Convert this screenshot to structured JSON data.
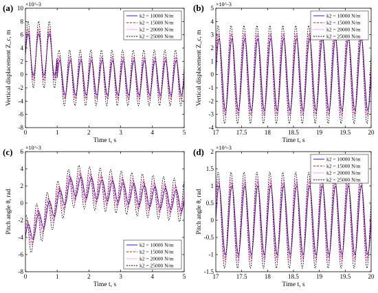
{
  "legend_suffix": "N/m",
  "series_styles": [
    {
      "color": "#0000ff",
      "dash": "none"
    },
    {
      "color": "#ff0000",
      "dash": "3,2"
    },
    {
      "color": "#ff00ff",
      "dash": "none",
      "alpha": 0.45
    },
    {
      "color": "#000000",
      "dash": "2,1.5"
    }
  ],
  "chart_data": [
    {
      "panel": "(a)",
      "type": "line",
      "xlabel": "Time t, s",
      "ylabel": "Vertical displacement Z_c, m",
      "y_exponent": "×10^-3",
      "xlim": [
        0,
        5
      ],
      "ylim": [
        -8,
        10
      ],
      "xticks": [
        0,
        1,
        2,
        3,
        4,
        5
      ],
      "yticks": [
        -8,
        -6,
        -4,
        -2,
        0,
        2,
        4,
        6,
        8,
        10
      ],
      "legend_position": "top-right",
      "signal": {
        "freq": 3.0,
        "transient_until": 1.0,
        "mean": -0.5
      },
      "series": [
        {
          "name": "k2 = 10000 N/m",
          "amplitude": 2.6
        },
        {
          "name": "k2 = 15000 N/m",
          "amplitude": 3.2
        },
        {
          "name": "k2 = 20000 N/m",
          "amplitude": 3.0
        },
        {
          "name": "k2 = 25000 N/m",
          "amplitude": 4.2
        }
      ]
    },
    {
      "panel": "(b)",
      "type": "line",
      "xlabel": "Time t, s",
      "ylabel": "Vertical displacement Z_c, m",
      "y_exponent": "×10^-3",
      "xlim": [
        17,
        20
      ],
      "ylim": [
        -4,
        5
      ],
      "xticks": [
        17,
        17.5,
        18,
        18.5,
        19,
        19.5,
        20
      ],
      "yticks": [
        -4,
        -3,
        -2,
        -1,
        0,
        1,
        2,
        3,
        4,
        5
      ],
      "legend_position": "top-right",
      "signal": {
        "freq": 4.0,
        "transient_until": 0,
        "mean": 0
      },
      "series": [
        {
          "name": "k2 = 10000 N/m",
          "amplitude": 2.7
        },
        {
          "name": "k2 = 15000 N/m",
          "amplitude": 3.0
        },
        {
          "name": "k2 = 20000 N/m",
          "amplitude": 3.1
        },
        {
          "name": "k2 = 25000 N/m",
          "amplitude": 3.7
        }
      ]
    },
    {
      "panel": "(c)",
      "type": "line",
      "xlabel": "Time t, s",
      "ylabel": "Pitch angle θ, rad",
      "y_exponent": "×10^-3",
      "xlim": [
        0,
        5
      ],
      "ylim": [
        -8,
        6
      ],
      "xticks": [
        0,
        1,
        2,
        3,
        4,
        5
      ],
      "yticks": [
        -8,
        -6,
        -4,
        -2,
        0,
        2,
        4,
        6
      ],
      "legend_position": "bottom-right",
      "signal": {
        "freq": 3.0,
        "transient_until": 0,
        "mean": 0
      },
      "series": [
        {
          "name": "k2 = 10000 N/m",
          "amplitude": 1.2
        },
        {
          "name": "k2 = 15000 N/m",
          "amplitude": 1.6
        },
        {
          "name": "k2 = 20000 N/m",
          "amplitude": 1.8
        },
        {
          "name": "k2 = 25000 N/m",
          "amplitude": 2.5
        }
      ]
    },
    {
      "panel": "(d)",
      "type": "line",
      "xlabel": "Time t, s",
      "ylabel": "Pitch angle θ, rad",
      "y_exponent": "×10^-3",
      "xlim": [
        17,
        20
      ],
      "ylim": [
        -1.5,
        2
      ],
      "xticks": [
        17,
        17.5,
        18,
        18.5,
        19,
        19.5,
        20
      ],
      "yticks": [
        -1.5,
        -1,
        -0.5,
        0,
        0.5,
        1,
        1.5,
        2
      ],
      "legend_position": "top-right",
      "signal": {
        "freq": 4.0,
        "transient_until": 0,
        "mean": 0
      },
      "series": [
        {
          "name": "k2 = 10000 N/m",
          "amplitude": 1.0
        },
        {
          "name": "k2 = 15000 N/m",
          "amplitude": 1.1
        },
        {
          "name": "k2 = 20000 N/m",
          "amplitude": 1.2
        },
        {
          "name": "k2 = 25000 N/m",
          "amplitude": 1.4
        }
      ]
    }
  ]
}
